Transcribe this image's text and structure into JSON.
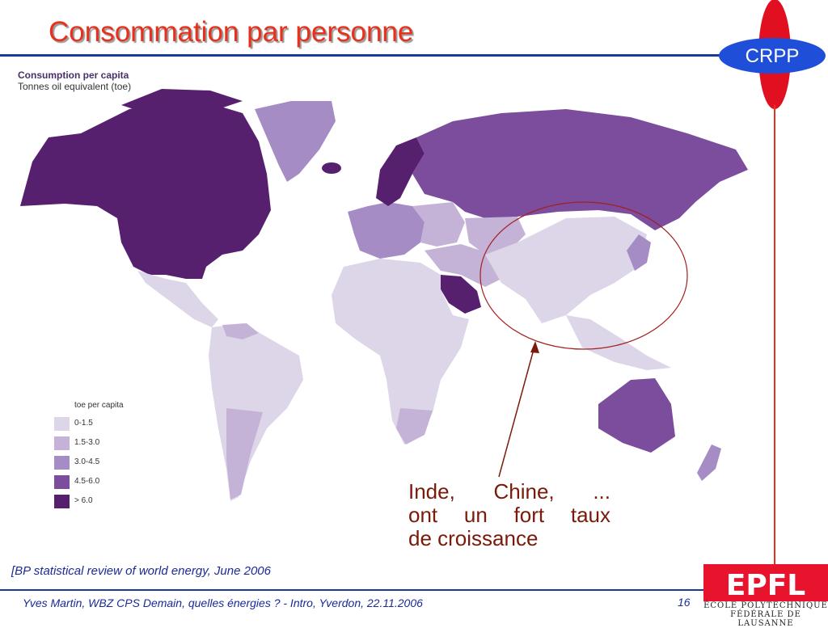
{
  "slide": {
    "title": "Consommation par personne",
    "callout_lines": [
      "Inde, Chine, ...",
      "ont un fort taux",
      "de croissance"
    ],
    "source": "[BP statistical review  of world energy, June 2006",
    "footer": "Yves Martin, WBZ CPS Demain, quelles énergies ? - Intro, Yverdon, 22.11.2006",
    "page_number": "16"
  },
  "logos": {
    "crpp": "CRPP",
    "epfl_wordmark": "EPFL",
    "epfl_name_line1": "ÉCOLE POLYTECHNIQUE",
    "epfl_name_line2": "FÉDÉRALE DE LAUSANNE"
  },
  "map": {
    "title": "Consumption per capita",
    "subtitle": "Tonnes oil equivalent (toe)",
    "legend_title": "toe per capita",
    "legend": [
      {
        "label": "0-1.5",
        "color": "#ddd5e8"
      },
      {
        "label": "1.5-3.0",
        "color": "#c4b3d7"
      },
      {
        "label": "3.0-4.5",
        "color": "#a58cc4"
      },
      {
        "label": "4.5-6.0",
        "color": "#7c4d9d"
      },
      {
        "label": "> 6.0",
        "color": "#57206f"
      }
    ],
    "regions": [
      {
        "name": "North America",
        "class": "> 6.0"
      },
      {
        "name": "Greenland",
        "class": "3.0-4.5"
      },
      {
        "name": "Iceland",
        "class": "> 6.0"
      },
      {
        "name": "Scandinavia",
        "class": "> 6.0"
      },
      {
        "name": "Russia",
        "class": "4.5-6.0"
      },
      {
        "name": "Western Europe",
        "class": "3.0-4.5"
      },
      {
        "name": "Eastern Europe",
        "class": "1.5-3.0"
      },
      {
        "name": "Central Asia",
        "class": "1.5-3.0"
      },
      {
        "name": "Middle East",
        "class": "1.5-3.0"
      },
      {
        "name": "Saudi Arabia",
        "class": "> 6.0"
      },
      {
        "name": "Africa",
        "class": "0-1.5"
      },
      {
        "name": "South Africa",
        "class": "1.5-3.0"
      },
      {
        "name": "Latin America",
        "class": "0-1.5"
      },
      {
        "name": "Venezuela",
        "class": "1.5-3.0"
      },
      {
        "name": "Argentina and Chile",
        "class": "1.5-3.0"
      },
      {
        "name": "China and India",
        "class": "0-1.5"
      },
      {
        "name": "Southeast Asia",
        "class": "0-1.5"
      },
      {
        "name": "Japan and Korea",
        "class": "3.0-4.5"
      },
      {
        "name": "Australia",
        "class": "4.5-6.0"
      },
      {
        "name": "New Zealand",
        "class": "3.0-4.5"
      }
    ]
  },
  "colors": {
    "title": "#e8301c",
    "rule": "#1a3a9a",
    "callout": "#7a1a0a",
    "ellipse": "#a02020",
    "crpp_blue": "#1f4fd8",
    "crpp_red": "#e01020",
    "epfl_red": "#e8132d"
  }
}
